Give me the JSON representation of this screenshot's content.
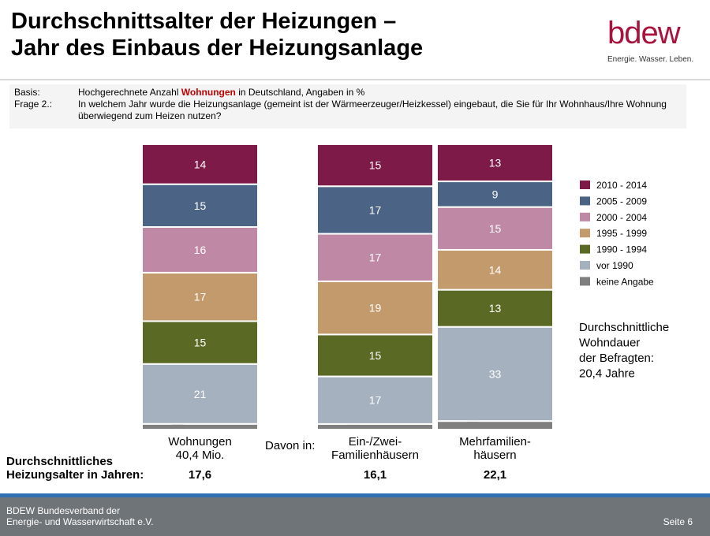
{
  "slide": {
    "title_line1": "Durchschnittsalter der Heizungen –",
    "title_line2": "Jahr des Einbaus der Heizungsanlage"
  },
  "logo": {
    "word": "bdew",
    "tagline": "Energie. Wasser. Leben."
  },
  "basis": {
    "basis_key": "Basis:",
    "basis_pre": "Hochgerechnete Anzahl ",
    "basis_highlight": "Wohnungen",
    "basis_post": " in Deutschland, Angaben in %",
    "frage_key": "Frage 2.:",
    "frage_text": "In welchem Jahr wurde die Heizungsanlage (gemeint ist der Wärmeerzeuger/Heizkessel) eingebaut, die Sie für Ihr Wohnhaus/Ihre Wohnung überwiegend zum Heizen nutzen?"
  },
  "chart_data": {
    "type": "bar",
    "stacked": true,
    "unit": "%",
    "categories": [
      "Wohnungen\n40,4 Mio.",
      "Ein-/Zwei-\nFamilienhäusern",
      "Mehrfamilien-\nhäusern"
    ],
    "davon_label": "Davon in:",
    "series": [
      {
        "name": "keine Angabe",
        "color": "#7f7f7f",
        "values": [
          2,
          2,
          3
        ]
      },
      {
        "name": "vor 1990",
        "color": "#a6b1bf",
        "values": [
          21,
          17,
          33
        ]
      },
      {
        "name": "1990 - 1994",
        "color": "#5a6a24",
        "values": [
          15,
          15,
          13
        ]
      },
      {
        "name": "1995 - 1999",
        "color": "#c39a6b",
        "values": [
          17,
          19,
          14
        ]
      },
      {
        "name": "2000 - 2004",
        "color": "#bf88a5",
        "values": [
          16,
          17,
          15
        ]
      },
      {
        "name": "2005 - 2009",
        "color": "#4b6384",
        "values": [
          15,
          17,
          9
        ]
      },
      {
        "name": "2010 - 2014",
        "color": "#7d1a47",
        "values": [
          14,
          15,
          13
        ]
      }
    ],
    "legend_position": "right",
    "average_age": {
      "label": "Durchschnittliches\nHeizungsalter in Jahren:",
      "values": [
        "17,6",
        "16,1",
        "22,1"
      ]
    },
    "annotation": "Durchschnittliche\nWohndauer\nder Befragten:\n20,4 Jahre"
  },
  "footer": {
    "org_line1": "BDEW Bundesverband der",
    "org_line2": "Energie- und Wasserwirtschaft e.V.",
    "page": "Seite 6"
  }
}
